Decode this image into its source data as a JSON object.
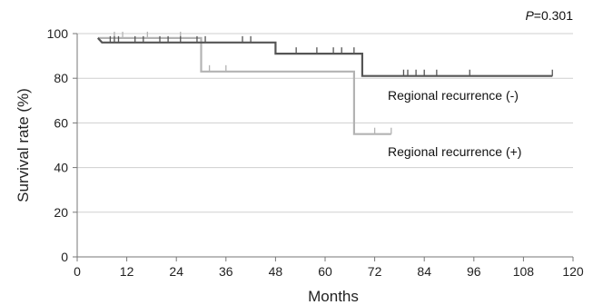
{
  "chart_data": {
    "type": "line",
    "xlabel": "Months",
    "ylabel": "Survival rate (%)",
    "xlim": [
      0,
      120
    ],
    "ylim": [
      0,
      100
    ],
    "xticks": [
      0,
      12,
      24,
      36,
      48,
      60,
      72,
      84,
      96,
      108,
      120
    ],
    "yticks": [
      0,
      20,
      40,
      60,
      80,
      100
    ],
    "grid": "horizontal",
    "pvalue": {
      "prefix": "P",
      "value": "=0.301"
    },
    "series": [
      {
        "name": "Regional recurrence (-)",
        "color": "#555555",
        "steps": [
          [
            5,
            98
          ],
          [
            6,
            96
          ],
          [
            48,
            96
          ],
          [
            48,
            91
          ],
          [
            69,
            91
          ],
          [
            69,
            81
          ],
          [
            115,
            81
          ]
        ],
        "censored": [
          [
            8,
            96
          ],
          [
            9,
            96
          ],
          [
            10,
            96
          ],
          [
            14,
            96
          ],
          [
            16,
            96
          ],
          [
            20,
            96
          ],
          [
            22,
            96
          ],
          [
            25,
            96
          ],
          [
            29,
            96
          ],
          [
            31,
            96
          ],
          [
            40,
            96
          ],
          [
            42,
            96
          ],
          [
            53,
            91
          ],
          [
            58,
            91
          ],
          [
            62,
            91
          ],
          [
            64,
            91
          ],
          [
            67,
            91
          ],
          [
            79,
            81
          ],
          [
            80,
            81
          ],
          [
            82,
            81
          ],
          [
            84,
            81
          ],
          [
            87,
            81
          ],
          [
            95,
            81
          ],
          [
            115,
            81
          ]
        ]
      },
      {
        "name": "Regional recurrence (+)",
        "color": "#b3b3b3",
        "steps": [
          [
            5,
            98
          ],
          [
            30,
            98
          ],
          [
            30,
            83
          ],
          [
            67,
            83
          ],
          [
            67,
            55
          ],
          [
            76,
            55
          ]
        ],
        "censored": [
          [
            9,
            98
          ],
          [
            11,
            98
          ],
          [
            17,
            98
          ],
          [
            25,
            98
          ],
          [
            32,
            83
          ],
          [
            36,
            83
          ],
          [
            72,
            55
          ],
          [
            76,
            55
          ]
        ]
      }
    ]
  }
}
